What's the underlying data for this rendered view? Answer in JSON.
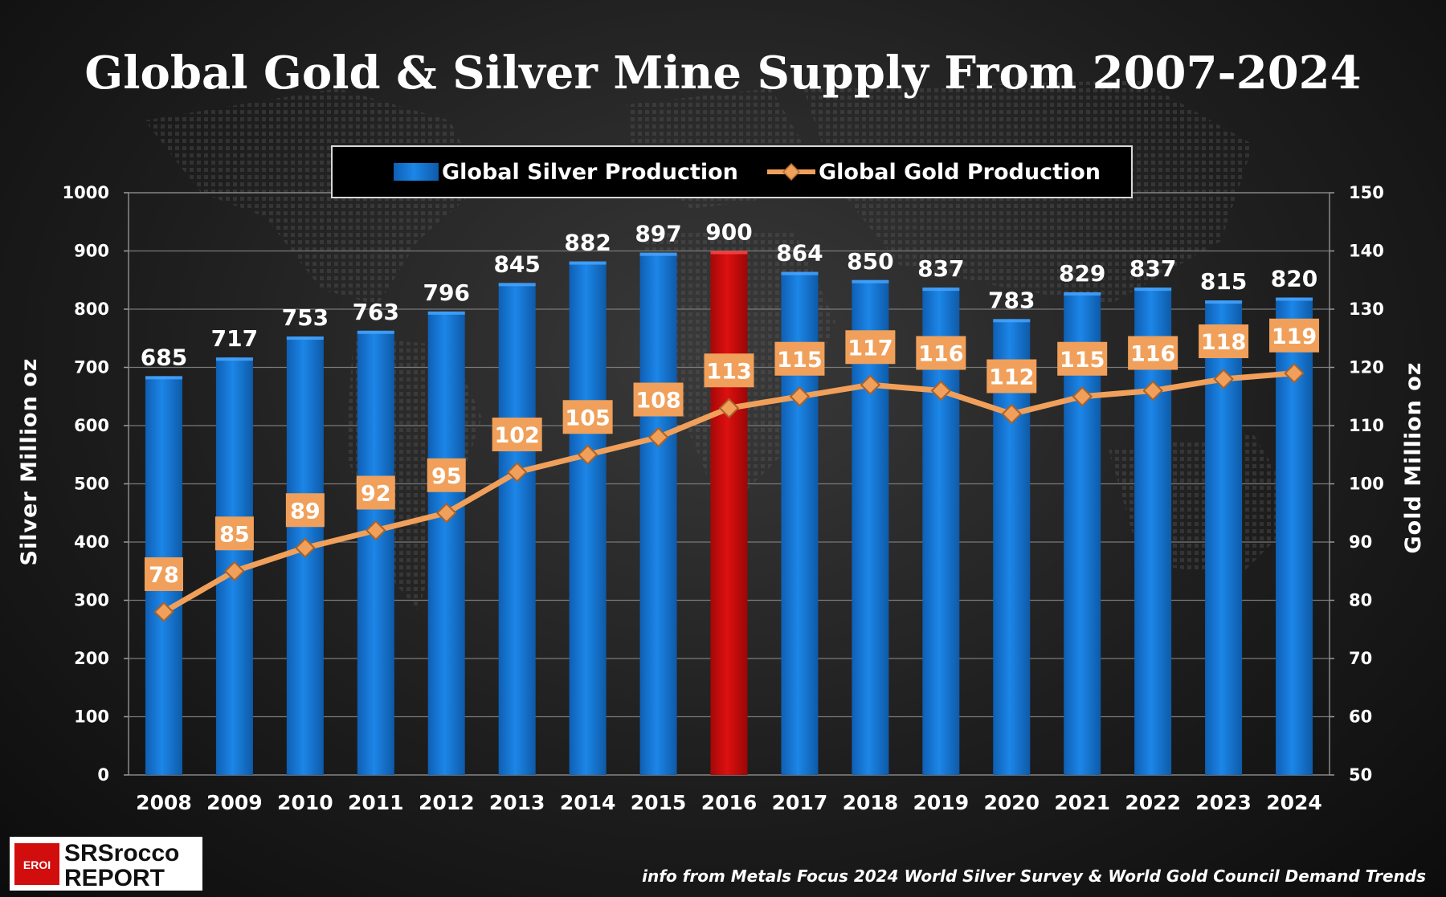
{
  "title": "Global Gold & Silver Mine Supply From 2007-2024",
  "source": "info from Metals Focus 2024 World Silver Survey & World Gold Council Demand Trends",
  "logo": {
    "badge": "EROI",
    "line1": "SRSrocco",
    "line2": "REPORT"
  },
  "colors": {
    "silver_bar": "#1878d6",
    "highlight_bar": "#cc0a0a",
    "gold_line": "#f0a05a",
    "gold_label_bg": "#f0a05a"
  },
  "chart_data": {
    "type": "bar",
    "title": "Global Gold & Silver Mine Supply From 2007-2024",
    "categories": [
      "2008",
      "2009",
      "2010",
      "2011",
      "2012",
      "2013",
      "2014",
      "2015",
      "2016",
      "2017",
      "2018",
      "2019",
      "2020",
      "2021",
      "2022",
      "2023",
      "2024"
    ],
    "highlight_category": "2016",
    "ylabel": "Silver  Million  oz",
    "ylim": [
      0,
      1000
    ],
    "yticks": [
      0,
      100,
      200,
      300,
      400,
      500,
      600,
      700,
      800,
      900,
      1000
    ],
    "y2label": "Gold  Million  oz",
    "y2lim": [
      50,
      150
    ],
    "y2ticks": [
      50,
      60,
      70,
      80,
      90,
      100,
      110,
      120,
      130,
      140,
      150
    ],
    "legend_position": "top-center",
    "grid": true,
    "series": [
      {
        "name": "Global Silver Production",
        "type": "bar",
        "axis": "left",
        "values": [
          685,
          717,
          753,
          763,
          796,
          845,
          882,
          897,
          900,
          864,
          850,
          837,
          783,
          829,
          837,
          815,
          820
        ]
      },
      {
        "name": "Global Gold Production",
        "type": "line",
        "axis": "right",
        "values": [
          78,
          85,
          89,
          92,
          95,
          102,
          105,
          108,
          113,
          115,
          117,
          116,
          112,
          115,
          116,
          118,
          119
        ]
      }
    ]
  }
}
